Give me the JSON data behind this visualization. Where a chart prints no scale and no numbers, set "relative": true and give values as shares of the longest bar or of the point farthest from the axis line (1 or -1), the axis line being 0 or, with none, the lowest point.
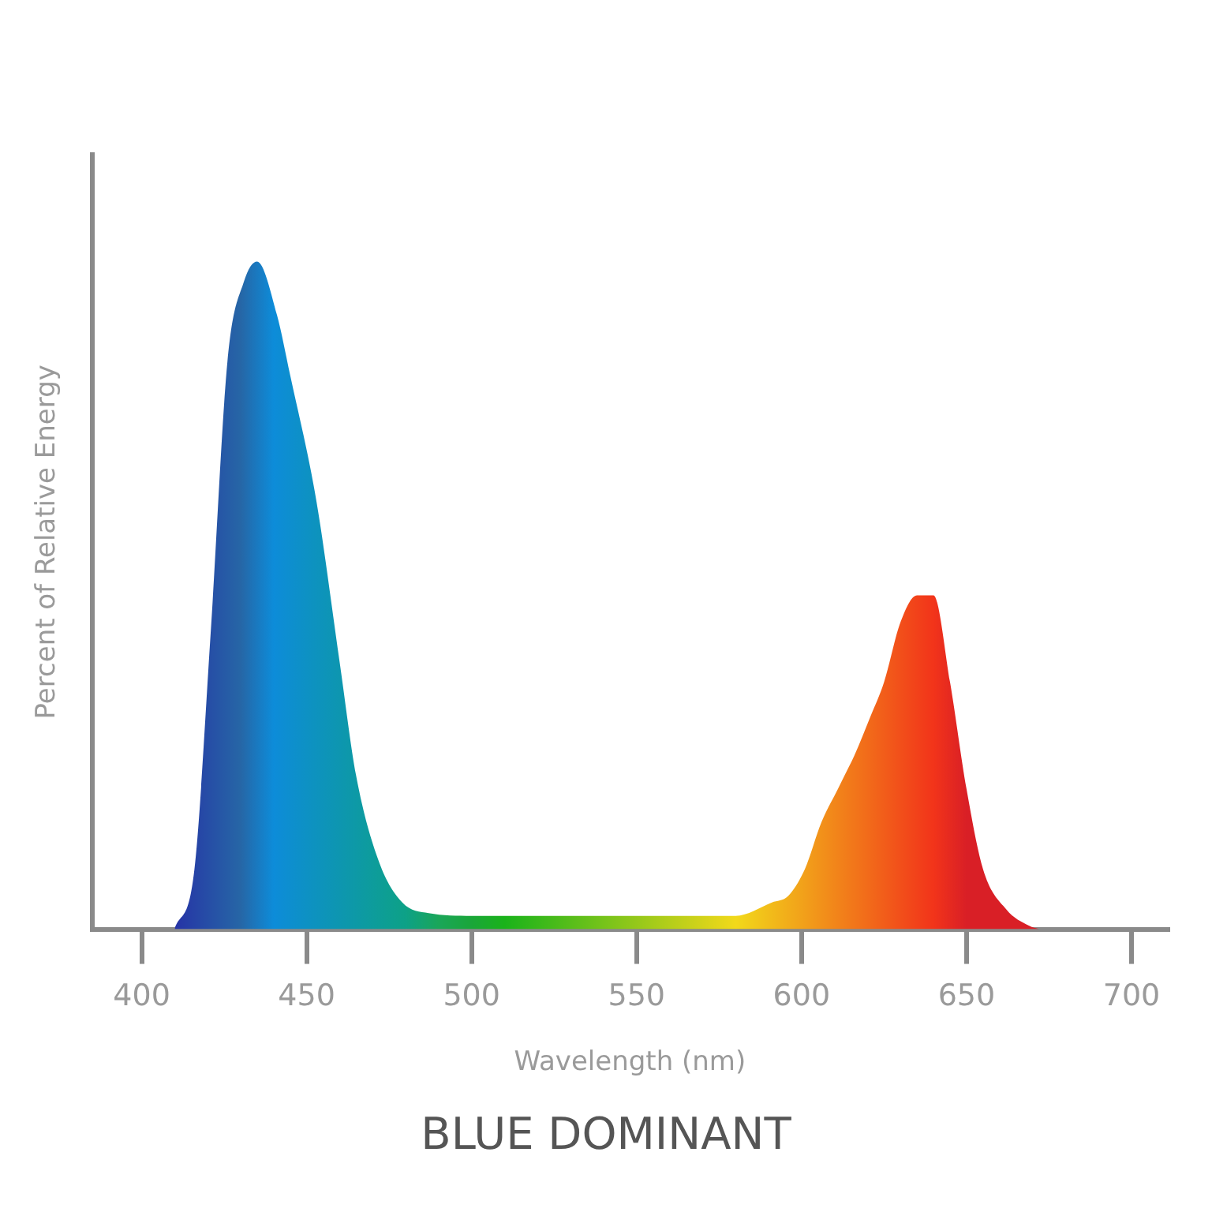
{
  "chart_data": {
    "type": "area",
    "relative": true,
    "title": "BLUE DOMINANT",
    "xlabel": "Wavelength (nm)",
    "ylabel": "Percent of Relative Energy",
    "xlim": [
      385,
      711
    ],
    "xticks": [
      400,
      450,
      500,
      550,
      600,
      650,
      700
    ],
    "tick_labels": "x",
    "grid": false,
    "legend": false,
    "series": [
      {
        "x": [
          410,
          416,
          421,
          426,
          431,
          435,
          441,
          445,
          453,
          460,
          465,
          472,
          479,
          487,
          500,
          550,
          580,
          591,
          596,
          601,
          606,
          611,
          613,
          616,
          621,
          625,
          630,
          635,
          640,
          645,
          650,
          655,
          662,
          669,
          672
        ],
        "values": [
          0,
          0.09,
          0.45,
          0.85,
          0.97,
          1,
          0.92,
          0.83,
          0.64,
          0.4,
          0.23,
          0.1,
          0.04,
          0.024,
          0.02,
          0.02,
          0.02,
          0.04,
          0.05,
          0.09,
          0.16,
          0.21,
          0.23,
          0.26,
          0.32,
          0.37,
          0.46,
          0.5,
          0.5,
          0.37,
          0.21,
          0.09,
          0.03,
          0.005,
          0
        ]
      }
    ]
  }
}
